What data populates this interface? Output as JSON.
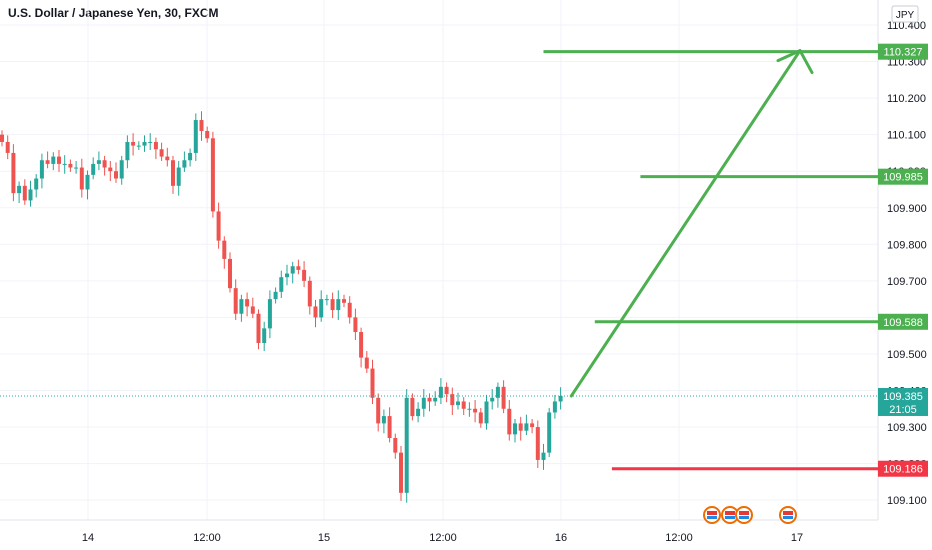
{
  "header": {
    "title": "U.S. Dollar / Japanese Yen, 30, FXCM"
  },
  "price_axis": {
    "currency_label": "JPY",
    "ticks": [
      "110.400",
      "110.300",
      "110.200",
      "110.100",
      "110.000",
      "109.900",
      "109.800",
      "109.700",
      "109.600",
      "109.500",
      "109.400",
      "109.300",
      "109.200",
      "109.100"
    ]
  },
  "time_axis": {
    "ticks": [
      "14",
      "12:00",
      "15",
      "12:00",
      "16",
      "12:00",
      "17"
    ]
  },
  "levels": [
    {
      "value": "110.327",
      "color": "#4caf50",
      "from_bar": 95
    },
    {
      "value": "109.985",
      "color": "#4caf50",
      "from_bar": 112
    },
    {
      "value": "109.588",
      "color": "#4caf50",
      "from_bar": 104
    },
    {
      "value": "109.186",
      "color": "#f23645",
      "from_bar": 107
    }
  ],
  "last_price": {
    "value": "109.385",
    "countdown": "21:05",
    "color": "#26a69a"
  },
  "event_icons": 4,
  "colors": {
    "up": "#26a69a",
    "down": "#ef5350",
    "grid": "#f0f3fa",
    "arrow": "#4caf50"
  },
  "chart_data": {
    "type": "candlestick",
    "title": "U.S. Dollar / Japanese Yen, 30, FXCM",
    "ylim": [
      109.05,
      110.42
    ],
    "x_ticks": [
      "14",
      "12:00",
      "15",
      "12:00",
      "16",
      "12:00",
      "17"
    ],
    "closes": [
      110.08,
      110.05,
      109.94,
      109.96,
      109.92,
      109.95,
      109.98,
      110.03,
      110.02,
      110.04,
      110.02,
      110.02,
      110.01,
      110.01,
      109.95,
      109.99,
      110.02,
      110.03,
      110.01,
      110.0,
      109.98,
      110.03,
      110.08,
      110.07,
      110.07,
      110.08,
      110.08,
      110.06,
      110.04,
      110.03,
      109.96,
      110.01,
      110.03,
      110.05,
      110.14,
      110.11,
      110.09,
      109.89,
      109.81,
      109.76,
      109.68,
      109.61,
      109.65,
      109.63,
      109.61,
      109.53,
      109.57,
      109.65,
      109.67,
      109.71,
      109.72,
      109.74,
      109.73,
      109.7,
      109.63,
      109.6,
      109.65,
      109.65,
      109.62,
      109.65,
      109.64,
      109.6,
      109.56,
      109.49,
      109.46,
      109.38,
      109.31,
      109.33,
      109.27,
      109.23,
      109.12,
      109.38,
      109.33,
      109.35,
      109.38,
      109.37,
      109.38,
      109.41,
      109.39,
      109.36,
      109.37,
      109.35,
      109.35,
      109.34,
      109.31,
      109.37,
      109.38,
      109.41,
      109.35,
      109.28,
      109.31,
      109.29,
      109.31,
      109.3,
      109.21,
      109.23,
      109.34,
      109.37,
      109.385
    ]
  }
}
